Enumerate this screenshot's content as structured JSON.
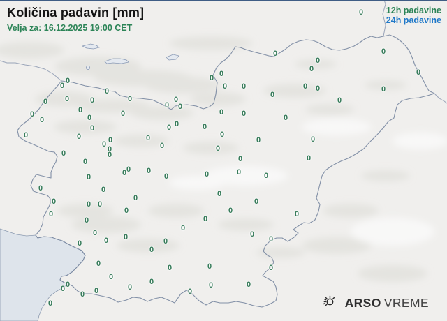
{
  "header": {
    "title": "Količina padavin [mm]",
    "valid_for": "Velja za: 16.12.2025 19:00 CET"
  },
  "legend": {
    "items": [
      {
        "label": "12h padavine",
        "color": "#2c8457",
        "selected": true
      },
      {
        "label": "24h padavine",
        "color": "#1e78c8",
        "selected": false
      }
    ]
  },
  "branding": {
    "logo_bold": "ARSO",
    "logo_regular": "VREME",
    "weather_icon": "sun-icon"
  },
  "map": {
    "region": "Slovenija",
    "marker_value": "0",
    "marker_color": "#347a58",
    "markers": [
      [
        517,
        18
      ],
      [
        394,
        77
      ],
      [
        549,
        74
      ],
      [
        599,
        104
      ],
      [
        97,
        116
      ],
      [
        89,
        123
      ],
      [
        96,
        142
      ],
      [
        65,
        146
      ],
      [
        46,
        164
      ],
      [
        60,
        172
      ],
      [
        37,
        194
      ],
      [
        115,
        158
      ],
      [
        132,
        144
      ],
      [
        128,
        169
      ],
      [
        132,
        184
      ],
      [
        113,
        196
      ],
      [
        153,
        131
      ],
      [
        186,
        142
      ],
      [
        176,
        163
      ],
      [
        158,
        201
      ],
      [
        149,
        207
      ],
      [
        157,
        214
      ],
      [
        157,
        222
      ],
      [
        91,
        220
      ],
      [
        122,
        232
      ],
      [
        127,
        254
      ],
      [
        184,
        243
      ],
      [
        178,
        248
      ],
      [
        212,
        198
      ],
      [
        232,
        209
      ],
      [
        213,
        245
      ],
      [
        238,
        253
      ],
      [
        239,
        151
      ],
      [
        252,
        143
      ],
      [
        258,
        153
      ],
      [
        253,
        178
      ],
      [
        242,
        183
      ],
      [
        293,
        182
      ],
      [
        303,
        112
      ],
      [
        317,
        106
      ],
      [
        322,
        124
      ],
      [
        317,
        161
      ],
      [
        318,
        193
      ],
      [
        312,
        213
      ],
      [
        344,
        228
      ],
      [
        455,
        87
      ],
      [
        446,
        99
      ],
      [
        349,
        124
      ],
      [
        390,
        136
      ],
      [
        437,
        124
      ],
      [
        455,
        127
      ],
      [
        549,
        128
      ],
      [
        486,
        144
      ],
      [
        349,
        163
      ],
      [
        409,
        169
      ],
      [
        370,
        201
      ],
      [
        448,
        200
      ],
      [
        442,
        227
      ],
      [
        342,
        247
      ],
      [
        381,
        252
      ],
      [
        58,
        270
      ],
      [
        77,
        289
      ],
      [
        73,
        307
      ],
      [
        148,
        272
      ],
      [
        127,
        293
      ],
      [
        143,
        293
      ],
      [
        124,
        316
      ],
      [
        136,
        334
      ],
      [
        114,
        349
      ],
      [
        152,
        345
      ],
      [
        180,
        340
      ],
      [
        194,
        284
      ],
      [
        181,
        302
      ],
      [
        296,
        250
      ],
      [
        314,
        278
      ],
      [
        294,
        314
      ],
      [
        262,
        327
      ],
      [
        237,
        346
      ],
      [
        217,
        358
      ],
      [
        141,
        378
      ],
      [
        159,
        397
      ],
      [
        243,
        384
      ],
      [
        300,
        382
      ],
      [
        217,
        404
      ],
      [
        186,
        412
      ],
      [
        302,
        409
      ],
      [
        272,
        418
      ],
      [
        97,
        408
      ],
      [
        90,
        414
      ],
      [
        118,
        422
      ],
      [
        138,
        417
      ],
      [
        72,
        435
      ],
      [
        367,
        289
      ],
      [
        330,
        302
      ],
      [
        425,
        307
      ],
      [
        361,
        336
      ],
      [
        388,
        343
      ],
      [
        388,
        384
      ],
      [
        356,
        408
      ]
    ]
  },
  "colors": {
    "top_bar": "#3f5d85",
    "sea": "#dee4eb",
    "border_line": "#76859f",
    "background": "#f0efed"
  }
}
